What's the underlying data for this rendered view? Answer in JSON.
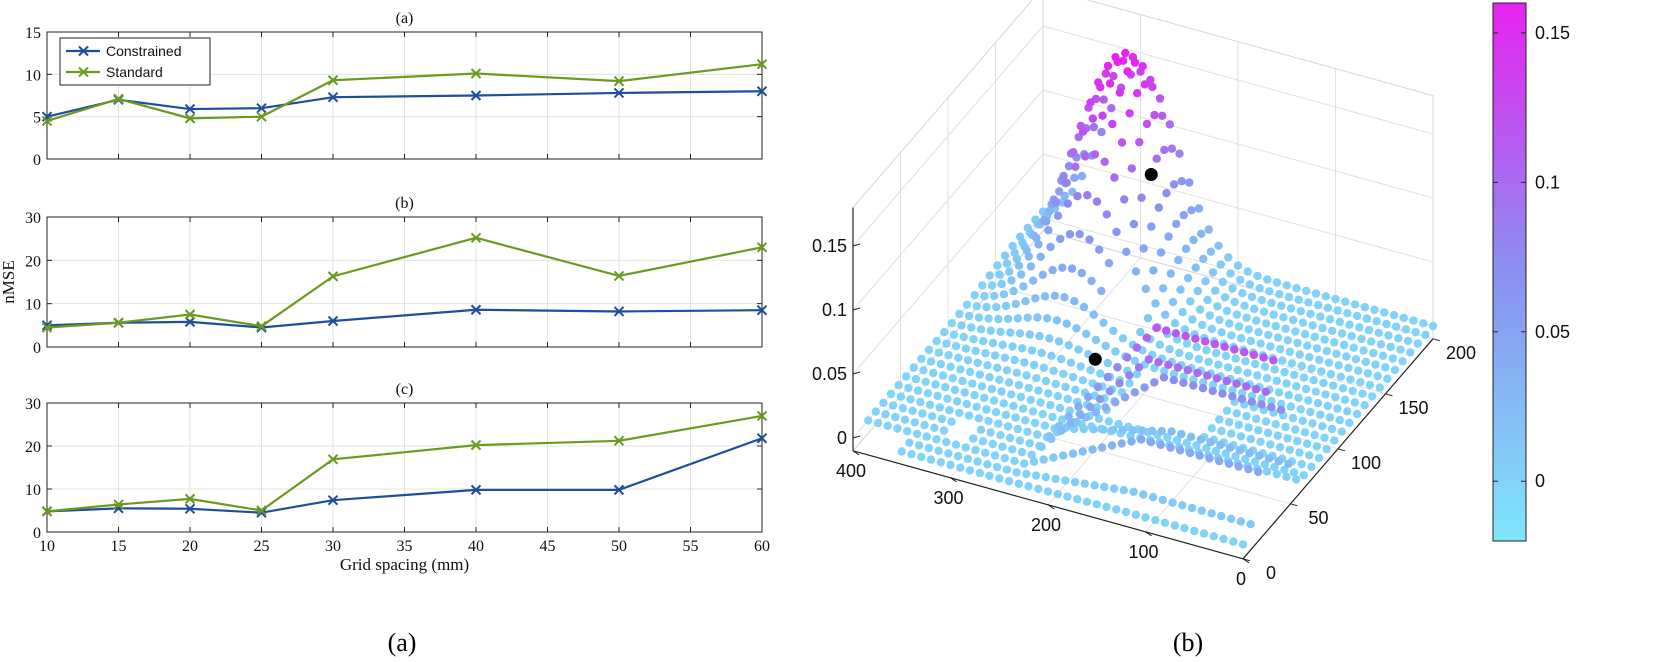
{
  "chart_data": [
    {
      "type": "line",
      "title": "(a)",
      "ylim": [
        0,
        15
      ],
      "yticks": [
        0,
        5,
        10,
        15
      ],
      "x": [
        10,
        15,
        20,
        25,
        30,
        40,
        50,
        60
      ],
      "series": [
        {
          "name": "Constrained",
          "color": "#1f4e9c",
          "marker": "x",
          "values": [
            5.0,
            7.0,
            5.9,
            6.0,
            7.3,
            7.5,
            7.8,
            8.0
          ]
        },
        {
          "name": "Standard",
          "color": "#6b9a1f",
          "marker": "x",
          "values": [
            4.5,
            7.1,
            4.8,
            5.0,
            9.3,
            10.1,
            9.2,
            11.2
          ]
        }
      ],
      "legend": "top-left",
      "grid": true
    },
    {
      "type": "line",
      "title": "(b)",
      "ylabel": "nMSE",
      "ylim": [
        0,
        30
      ],
      "yticks": [
        0,
        10,
        20,
        30
      ],
      "x": [
        10,
        15,
        20,
        25,
        30,
        40,
        50,
        60
      ],
      "series": [
        {
          "color": "#1f4e9c",
          "values": [
            5.0,
            5.6,
            5.8,
            4.5,
            6.0,
            8.6,
            8.2,
            8.5
          ]
        },
        {
          "color": "#6b9a1f",
          "values": [
            4.5,
            5.6,
            7.5,
            4.8,
            16.3,
            25.2,
            16.4,
            23.0
          ]
        }
      ],
      "grid": true
    },
    {
      "type": "line",
      "title": "(c)",
      "xlabel": "Grid spacing (mm)",
      "ylim": [
        0,
        30
      ],
      "yticks": [
        0,
        10,
        20,
        30
      ],
      "xlim": [
        10,
        60
      ],
      "xticks": [
        10,
        15,
        20,
        25,
        30,
        35,
        40,
        45,
        50,
        55,
        60
      ],
      "x": [
        10,
        15,
        20,
        25,
        30,
        40,
        50,
        60
      ],
      "series": [
        {
          "color": "#1f4e9c",
          "values": [
            4.8,
            5.5,
            5.4,
            4.5,
            7.4,
            9.8,
            9.8,
            21.8
          ]
        },
        {
          "color": "#6b9a1f",
          "values": [
            4.8,
            6.4,
            7.7,
            5.0,
            16.9,
            20.2,
            21.2,
            27.0
          ]
        }
      ],
      "grid": true
    },
    {
      "type": "scatter",
      "subtype": "3d",
      "x_ticks": [
        "400",
        "300",
        "200",
        "100",
        "0"
      ],
      "y_ticks": [
        "0",
        "50",
        "100",
        "150",
        "200"
      ],
      "z_ticks": [
        "0",
        "0.05",
        "0.1",
        "0.15"
      ],
      "colorbar": {
        "ticks": [
          "0",
          "0.05",
          "0.1",
          "0.15"
        ],
        "range": [
          -0.02,
          0.16
        ],
        "colors": [
          "#7fe6fb",
          "#8a90f0",
          "#e623f0"
        ]
      },
      "highlighted_points": 2,
      "grid": true
    }
  ],
  "figure_labels": {
    "left": "(a)",
    "right": "(b)"
  }
}
